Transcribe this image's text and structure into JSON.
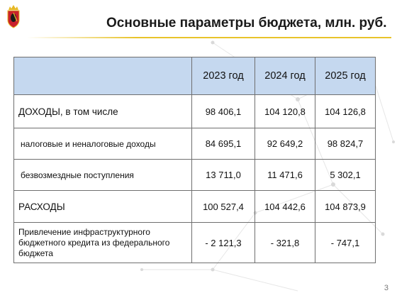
{
  "header": {
    "title": "Основные параметры бюджета, млн. руб."
  },
  "table": {
    "columns": [
      "2023 год",
      "2024 год",
      "2025 год"
    ],
    "rows": [
      {
        "label": "ДОХОДЫ, в том числе",
        "values": [
          "98 406,1",
          "104 120,8",
          "104 126,8"
        ]
      },
      {
        "label": "налоговые и неналоговые доходы",
        "values": [
          "84 695,1",
          "92 649,2",
          "98 824,7"
        ]
      },
      {
        "label": "безвозмездные поступления",
        "values": [
          "13 711,0",
          "11 471,6",
          "5 302,1"
        ]
      },
      {
        "label": "РАСХОДЫ",
        "values": [
          "100 527,4",
          "104 442,6",
          "104 873,9"
        ]
      },
      {
        "label": "Привлечение инфраструктурного бюджетного кредита из федерального бюджета",
        "values": [
          "- 2 121,3",
          "- 321,8",
          "- 747,1"
        ]
      }
    ]
  },
  "footer": {
    "page_number": "3"
  },
  "colors": {
    "header_fill": "#c5d8ef",
    "accent_rule": "#e8c32a",
    "emblem_red": "#c8202c",
    "emblem_gold": "#e7b824"
  },
  "icons": {
    "emblem": "coat-of-arms-icon"
  }
}
